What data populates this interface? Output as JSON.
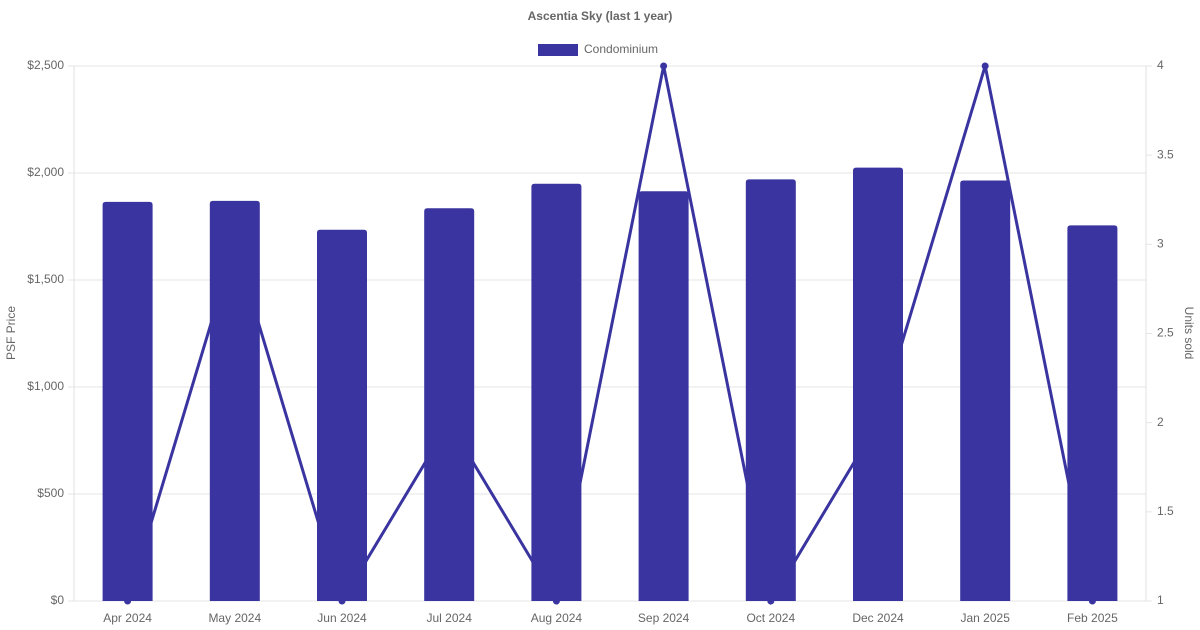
{
  "chart_data": {
    "type": "bar",
    "title": "Ascentia Sky (last 1 year)",
    "y_label": "PSF Price",
    "y2_label": "Units sold",
    "categories": [
      "Apr 2024",
      "May 2024",
      "Jun 2024",
      "Jul 2024",
      "Aug 2024",
      "Sep 2024",
      "Oct 2024",
      "Dec 2024",
      "Jan 2025",
      "Feb 2025"
    ],
    "series": [
      {
        "name": "Condominium",
        "type": "bar",
        "color": "#3a34a0",
        "values": [
          1865,
          1870,
          1735,
          1835,
          1950,
          1915,
          1970,
          2025,
          1965,
          1755
        ]
      },
      {
        "type": "line",
        "axis": "y2",
        "color": "#3a34a0",
        "values": [
          1,
          3,
          1,
          2,
          1,
          4,
          1,
          2,
          4,
          1
        ]
      }
    ],
    "ylim": [
      0,
      2500
    ],
    "yticks": [
      {
        "value": 0,
        "label": "$0"
      },
      {
        "value": 500,
        "label": "$500"
      },
      {
        "value": 1000,
        "label": "$1,000"
      },
      {
        "value": 1500,
        "label": "$1,500"
      },
      {
        "value": 2000,
        "label": "$2,000"
      },
      {
        "value": 2500,
        "label": "$2,500"
      }
    ],
    "y2lim": [
      1,
      4
    ],
    "y2ticks": [
      1,
      1.5,
      2,
      2.5,
      3,
      3.5,
      4
    ],
    "grid": true,
    "legend": "top"
  }
}
